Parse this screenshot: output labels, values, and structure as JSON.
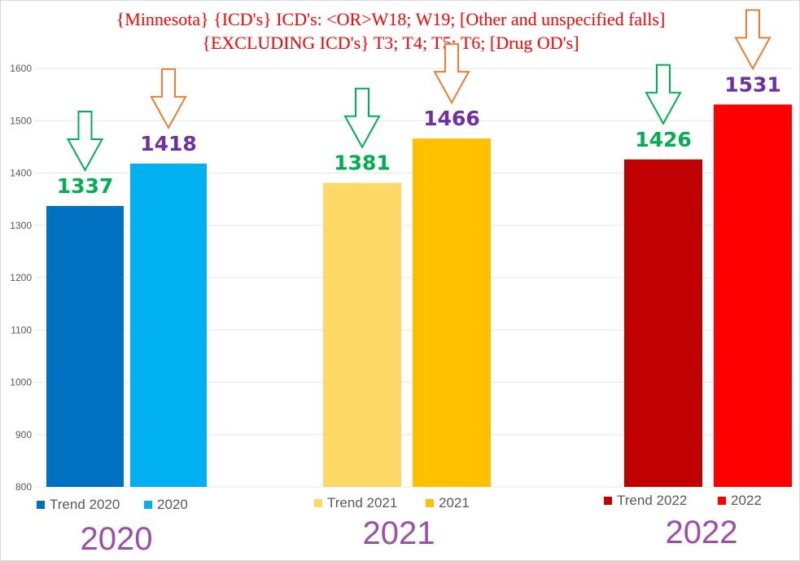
{
  "title": {
    "line1": "{Minnesota}  {ICD's}  ICD's: <OR>W18; W19;  [Other and unspecified falls]",
    "line2": "{EXCLUDING ICD's} T3; T4; T5; T6; [Drug OD's]"
  },
  "chart_data": {
    "type": "bar",
    "title": "{Minnesota}  {ICD's}  ICD's: <OR>W18; W19;  [Other and unspecified falls] {EXCLUDING ICD's} T3; T4; T5; T6; [Drug OD's]",
    "ylim": [
      800,
      1600
    ],
    "yticks": [
      "800",
      "900",
      "1000",
      "1100",
      "1200",
      "1300",
      "1400",
      "1500",
      "1600"
    ],
    "groups": [
      {
        "year_label": "2020",
        "series": [
          {
            "name": "Trend 2020",
            "value": 1337,
            "value_label": "1337",
            "color": "#0070c0",
            "label_color": "#00b050",
            "arrow_color": "#00b050"
          },
          {
            "name": "2020",
            "value": 1418,
            "value_label": "1418",
            "color": "#00b0f0",
            "label_color": "#7030a0",
            "arrow_color": "#ed7d31"
          }
        ]
      },
      {
        "year_label": "2021",
        "series": [
          {
            "name": "Trend 2021",
            "value": 1381,
            "value_label": "1381",
            "color": "#ffd966",
            "label_color": "#00b050",
            "arrow_color": "#00b050"
          },
          {
            "name": "2021",
            "value": 1466,
            "value_label": "1466",
            "color": "#ffc000",
            "label_color": "#7030a0",
            "arrow_color": "#ed7d31"
          }
        ]
      },
      {
        "year_label": "2022",
        "series": [
          {
            "name": "Trend 2022",
            "value": 1426,
            "value_label": "1426",
            "color": "#c00000",
            "label_color": "#00b050",
            "arrow_color": "#00b050"
          },
          {
            "name": "2022",
            "value": 1531,
            "value_label": "1531",
            "color": "#ff0000",
            "label_color": "#7030a0",
            "arrow_color": "#ed7d31"
          }
        ]
      }
    ]
  }
}
